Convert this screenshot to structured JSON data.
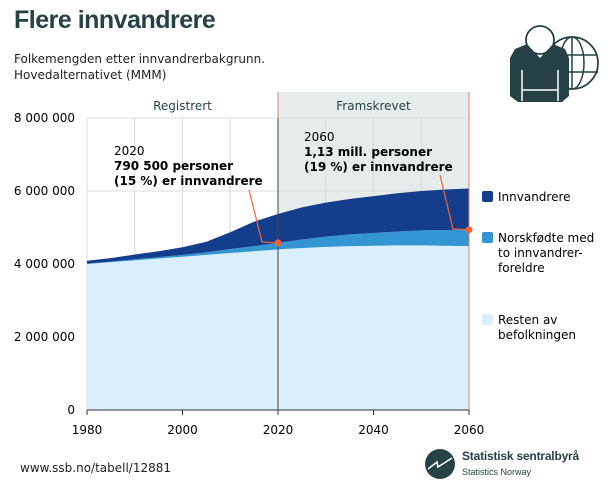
{
  "title": "Flere innvandrere",
  "subtitle_line1": "Folkemengden etter innvandrerbakgrunn.",
  "subtitle_line2": "Hovedalternativet (MMM)",
  "footer_url": "www.ssb.no/tabell/12881",
  "logo": {
    "name": "Statistisk sentralbyrå",
    "sub": "Statistics Norway"
  },
  "colors": {
    "innvandrere": "#143d8c",
    "norskfodte": "#3396d2",
    "resten": "#d9effc",
    "projection_bg": "#e6ebeb",
    "marker": "#f26539",
    "dark": "#274247"
  },
  "chart_data": {
    "type": "area",
    "stacked": true,
    "x": [
      1980,
      1985,
      1990,
      1995,
      2000,
      2005,
      2010,
      2015,
      2020,
      2025,
      2030,
      2035,
      2040,
      2045,
      2050,
      2055,
      2060
    ],
    "series": [
      {
        "name": "Resten av befolkningen",
        "legend": [
          "Resten av",
          "befolkningen"
        ],
        "values": [
          4000000,
          4050000,
          4100000,
          4150000,
          4200000,
          4250000,
          4300000,
          4350000,
          4400000,
          4440000,
          4470000,
          4490000,
          4500000,
          4510000,
          4510000,
          4500000,
          4490000
        ]
      },
      {
        "name": "Norskfødte med to innvandrerforeldre",
        "legend": [
          "Norskfødte med",
          "to innvandrer-",
          "foreldre"
        ],
        "values": [
          10000,
          20000,
          30000,
          40000,
          50000,
          70000,
          110000,
          140000,
          180000,
          230000,
          280000,
          320000,
          350000,
          380000,
          410000,
          430000,
          450000
        ]
      },
      {
        "name": "Innvandrere",
        "legend": [
          "Innvandrere"
        ],
        "values": [
          80000,
          90000,
          130000,
          160000,
          210000,
          290000,
          460000,
          670000,
          790000,
          880000,
          930000,
          970000,
          1010000,
          1050000,
          1080000,
          1110000,
          1130000
        ]
      }
    ],
    "xlim": [
      1980,
      2060
    ],
    "ylim": [
      0,
      8000000
    ],
    "xticks": [
      "1980",
      "2000",
      "2020",
      "2040",
      "2060"
    ],
    "yticks": [
      "0",
      "2 000 000",
      "4 000 000",
      "6 000 000",
      "8 000 000"
    ],
    "periods": [
      {
        "label": "Registrert",
        "from": 1980,
        "to": 2020
      },
      {
        "label": "Framskrevet",
        "from": 2020,
        "to": 2060
      }
    ],
    "annotations": [
      {
        "year": "2020",
        "line1": "790 500 personer",
        "line2": "(15 %) er innvandrere"
      },
      {
        "year": "2060",
        "line1": "1,13 mill. personer",
        "line2": "(19 %) er innvandrere"
      }
    ],
    "grid": true,
    "legend_position": "right"
  }
}
